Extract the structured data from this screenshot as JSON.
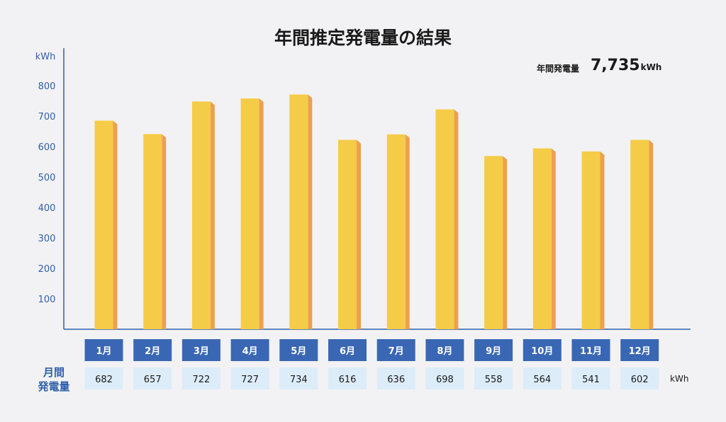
{
  "title": "年間推定発電量の結果",
  "total": {
    "label": "年間発電量",
    "value": "7,735",
    "unit": "kWh"
  },
  "row_label_line1": "月間",
  "row_label_line2": "発電量",
  "value_unit": "kWh",
  "colors": {
    "bar_front": "#f5cc47",
    "bar_side": "#eca14e",
    "axis": "#2f5fa8",
    "month_box": "#3a67b4",
    "value_box": "#dcecf8"
  },
  "chart_data": {
    "type": "bar",
    "ylabel": "kWh",
    "ylim": [
      0,
      800
    ],
    "yticks": [
      100,
      200,
      300,
      400,
      500,
      600,
      700,
      800
    ],
    "categories": [
      "1月",
      "2月",
      "3月",
      "4月",
      "5月",
      "6月",
      "7月",
      "8月",
      "9月",
      "10月",
      "11月",
      "12月"
    ],
    "values": [
      682,
      657,
      722,
      727,
      734,
      616,
      636,
      698,
      558,
      564,
      541,
      602
    ],
    "value_labels": [
      "682",
      "657",
      "722",
      "727",
      "734",
      "616",
      "636",
      "698",
      "558",
      "564",
      "541",
      "602"
    ],
    "bar_heights_drawn": [
      685,
      641,
      748,
      758,
      771,
      622,
      640,
      722,
      569,
      594,
      584,
      622
    ]
  }
}
